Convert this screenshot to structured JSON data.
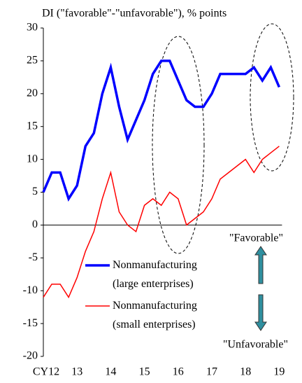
{
  "chart_data": {
    "type": "line",
    "title": "DI (\"favorable\"-\"unfavorable\"), % points",
    "categories": [
      "CY12",
      null,
      null,
      null,
      "13",
      null,
      null,
      null,
      "14",
      null,
      null,
      null,
      "15",
      null,
      null,
      null,
      "16",
      null,
      null,
      null,
      "17",
      null,
      null,
      null,
      "18",
      null,
      null,
      null,
      "19"
    ],
    "series": [
      {
        "name": "Nonmanufacturing (large enterprises)",
        "color": "#0000ff",
        "values": [
          5,
          8,
          8,
          4,
          6,
          12,
          14,
          20,
          24,
          18,
          13,
          16,
          19,
          23,
          25,
          25,
          22,
          19,
          18,
          18,
          20,
          23,
          23,
          23,
          23,
          24,
          22,
          24,
          21
        ]
      },
      {
        "name": "Nonmanufacturing (small enterprises)",
        "color": "#ff0000",
        "values": [
          -11,
          -9,
          -9,
          -11,
          -8,
          -4,
          -1,
          4,
          8,
          2,
          0,
          -1,
          3,
          4,
          3,
          5,
          4,
          0,
          1,
          2,
          4,
          7,
          8,
          9,
          10,
          8,
          10,
          11,
          12
        ]
      }
    ],
    "ylim": [
      -20,
      30
    ],
    "yticks": [
      -20,
      -15,
      -10,
      -5,
      0,
      5,
      10,
      15,
      20,
      25,
      30
    ],
    "annotations": [
      "\"Favorable\"",
      "\"Unfavorable\""
    ]
  }
}
